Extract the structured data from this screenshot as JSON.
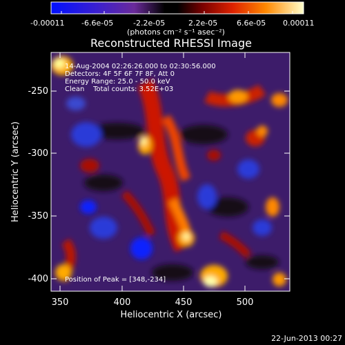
{
  "colorbar": {
    "tick_labels": [
      "-0.00011",
      "-6.6e-05",
      "-2.2e-05",
      "2.2e-05",
      "6.6e-05",
      "0.00011"
    ],
    "units_label": "(photons cm⁻² s⁻¹ asec⁻²)"
  },
  "plot": {
    "title": "Reconstructed RHESSI Image",
    "xlabel": "Heliocentric X (arcsec)",
    "ylabel": "Heliocentric Y (arcsec)",
    "x_ticks": [
      "350",
      "400",
      "450",
      "500"
    ],
    "y_ticks": [
      "-250",
      "-300",
      "-350",
      "-400"
    ]
  },
  "annotations": {
    "time_range": "14-Aug-2004 02:26:26.000 to 02:30:56.000",
    "detectors": "Detectors: 4F 5F 6F 7F 8F, Att 0",
    "energy_range": "Energy Range: 25.0 - 50.0 keV",
    "clean_counts": "Clean    Total counts: 3.52E+03",
    "peak_position": "Position of Peak = [348,-234]"
  },
  "footer": {
    "timestamp": "22-Jun-2013 00:27"
  },
  "colors": {
    "background": "#000000",
    "text": "#ffffff",
    "colormap": [
      "#0000ff",
      "#6a1fb5",
      "#2a1020",
      "#5a0000",
      "#cc2200",
      "#ff8800",
      "#ffff99"
    ]
  }
}
